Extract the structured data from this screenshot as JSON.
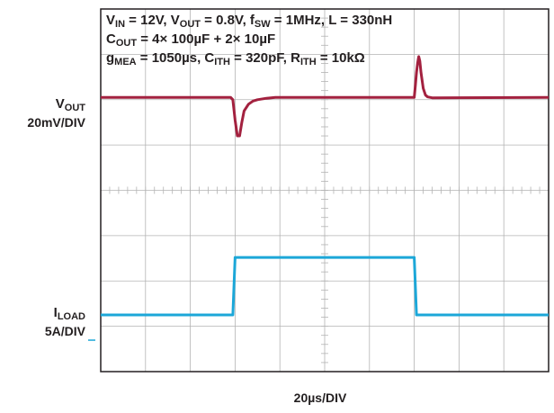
{
  "chart_data": {
    "type": "line",
    "title_lines": [
      [
        {
          "t": "V"
        },
        {
          "t": "IN",
          "sub": true
        },
        {
          "t": " = 12V, V"
        },
        {
          "t": "OUT",
          "sub": true
        },
        {
          "t": " = 0.8V, f"
        },
        {
          "t": "SW",
          "sub": true
        },
        {
          "t": " = 1MHz, L = 330nH"
        }
      ],
      [
        {
          "t": "C"
        },
        {
          "t": "OUT",
          "sub": true
        },
        {
          "t": " = 4× 100µF + 2× 10µF"
        }
      ],
      [
        {
          "t": "g"
        },
        {
          "t": "MEA",
          "sub": true
        },
        {
          "t": " = 1050µs, C"
        },
        {
          "t": "ITH",
          "sub": true
        },
        {
          "t": " = 320pF, R"
        },
        {
          "t": "ITH",
          "sub": true
        },
        {
          "t": " = 10kΩ"
        }
      ]
    ],
    "xlabel": "20µs/DIV",
    "x_divisions": 10,
    "y_divisions": 8,
    "xlim": [
      0,
      200
    ],
    "ylim": [
      -4,
      4
    ],
    "grid": true,
    "series": [
      {
        "name_parts": [
          {
            "t": "V"
          },
          {
            "t": "OUT",
            "sub": true
          }
        ],
        "scale": "20mV/DIV",
        "color": "#a3213f",
        "x": [
          0,
          58,
          59,
          60,
          61,
          62,
          63,
          64,
          66,
          68,
          70,
          74,
          78,
          140,
          140.5,
          141,
          141.5,
          142,
          142.5,
          143,
          144,
          145,
          146,
          148,
          200
        ],
        "y": [
          2.05,
          2.05,
          2.0,
          1.55,
          1.2,
          1.2,
          1.5,
          1.75,
          1.9,
          1.97,
          2.0,
          2.03,
          2.05,
          2.05,
          2.3,
          2.6,
          2.8,
          2.95,
          2.85,
          2.6,
          2.25,
          2.1,
          2.06,
          2.04,
          2.05
        ]
      },
      {
        "name_parts": [
          {
            "t": "I"
          },
          {
            "t": "LOAD",
            "sub": true
          }
        ],
        "scale": "5A/DIV",
        "color": "#1ca7d8",
        "x": [
          0,
          59,
          60,
          140,
          141,
          200
        ],
        "y": [
          -2.75,
          -2.75,
          -1.48,
          -1.48,
          -2.75,
          -2.75
        ]
      }
    ]
  }
}
